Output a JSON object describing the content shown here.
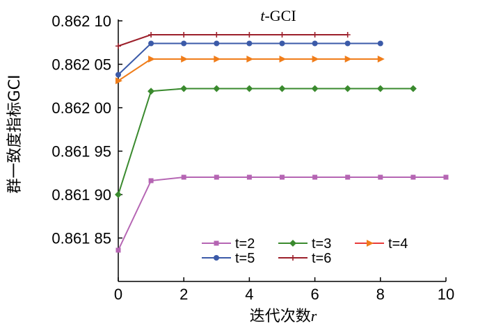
{
  "chart_data": {
    "type": "line",
    "title_italic": "t",
    "title_rest": "-GCI",
    "xlabel_text": "迭代次数",
    "xlabel_italic": "r",
    "ylabel": "群一致度指标GCI",
    "xlim": [
      0,
      10
    ],
    "ylim": [
      0.8618,
      0.8621
    ],
    "xticks": [
      0,
      2,
      4,
      6,
      8,
      10
    ],
    "xtick_labels": [
      "0",
      "2",
      "4",
      "6",
      "8",
      "10"
    ],
    "yticks": [
      0.86185,
      0.8619,
      0.86195,
      0.862,
      0.86205,
      0.8621
    ],
    "ytick_labels": [
      "0.861 85",
      "0.861 90",
      "0.861 95",
      "0.862 00",
      "0.862 05",
      "0.862 10"
    ],
    "grid": false,
    "legend_position": "bottom-center",
    "series": [
      {
        "name": "t=2",
        "color": "#b565b3",
        "marker": "square",
        "x": [
          0,
          1,
          2,
          3,
          4,
          5,
          6,
          7,
          8,
          9,
          10
        ],
        "y": [
          0.861836,
          0.861916,
          0.86192,
          0.86192,
          0.86192,
          0.86192,
          0.86192,
          0.86192,
          0.86192,
          0.86192,
          0.86192
        ]
      },
      {
        "name": "t=3",
        "color": "#3a8a2e",
        "marker": "diamond",
        "x": [
          0,
          1,
          2,
          3,
          4,
          5,
          6,
          7,
          8,
          9
        ],
        "y": [
          0.8619,
          0.862019,
          0.862022,
          0.862022,
          0.862022,
          0.862022,
          0.862022,
          0.862022,
          0.862022,
          0.862022
        ]
      },
      {
        "name": "t=4",
        "color": "#f07d1a",
        "marker": "triangle-right",
        "x": [
          0,
          1,
          2,
          3,
          4,
          5,
          6,
          7,
          8
        ],
        "y": [
          0.862031,
          0.862056,
          0.862056,
          0.862056,
          0.862056,
          0.862056,
          0.862056,
          0.862056,
          0.862056
        ]
      },
      {
        "name": "t=5",
        "color": "#3b5aa8",
        "marker": "circle",
        "x": [
          0,
          1,
          2,
          3,
          4,
          5,
          6,
          7,
          8
        ],
        "y": [
          0.862038,
          0.862074,
          0.862074,
          0.862074,
          0.862074,
          0.862074,
          0.862074,
          0.862074,
          0.862074
        ]
      },
      {
        "name": "t=6",
        "color": "#9c1f2a",
        "marker": "plus",
        "x": [
          0,
          1,
          2,
          3,
          4,
          5,
          6,
          7
        ],
        "y": [
          0.862071,
          0.862084,
          0.862084,
          0.862084,
          0.862084,
          0.862084,
          0.862084,
          0.862084
        ]
      }
    ],
    "legend_series_line_color": "#e83a3a"
  }
}
